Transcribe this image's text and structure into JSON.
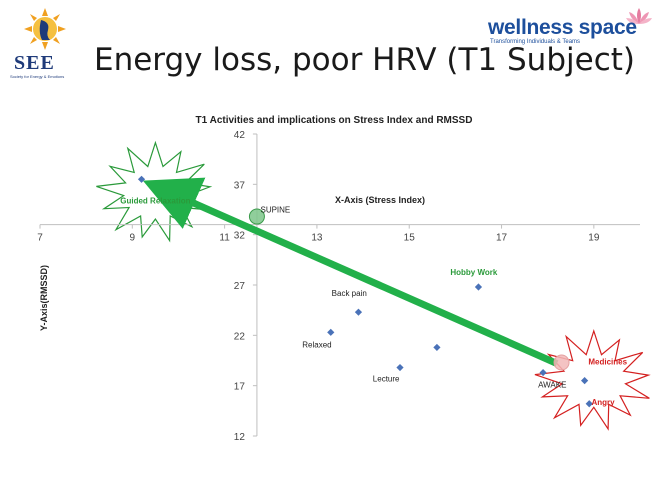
{
  "header": {
    "title": "Energy loss, poor HRV (T1 Subject)",
    "left_logo": {
      "text": "SEE",
      "subtitle": "Society for Energy & Emotions"
    },
    "right_logo": {
      "text": "wellness space",
      "tagline": "Transforming Individuals & Teams"
    }
  },
  "chart_data": {
    "type": "scatter",
    "title": "T1 Activities and implications on Stress Index and RMSSD",
    "xlabel": "X-Axis (Stress Index)",
    "ylabel": "Y-Axis(RMSSD)",
    "xlim": [
      7,
      20
    ],
    "ylim": [
      12,
      42
    ],
    "x_axis_crosses_y": 33,
    "y_axis_crosses_x": 11.7,
    "x_ticks": [
      7,
      9,
      11,
      13,
      15,
      17,
      19
    ],
    "y_ticks": [
      12,
      17,
      22,
      27,
      32,
      37,
      42
    ],
    "grid": false,
    "point_color": "#4a72b8",
    "points": [
      {
        "x": 9.2,
        "y": 37.5
      },
      {
        "x": 13.3,
        "y": 22.3
      },
      {
        "x": 13.9,
        "y": 24.3
      },
      {
        "x": 14.8,
        "y": 18.8
      },
      {
        "x": 15.6,
        "y": 20.8
      },
      {
        "x": 16.5,
        "y": 26.8
      },
      {
        "x": 17.9,
        "y": 18.3
      },
      {
        "x": 18.8,
        "y": 17.5
      },
      {
        "x": 18.9,
        "y": 15.2
      }
    ],
    "annotations": [
      {
        "text": "Guided Relaxation",
        "x": 9.5,
        "y": 35.1,
        "color": "#2a9a3a",
        "bold": true
      },
      {
        "text": "SUPINE",
        "x": 12.1,
        "y": 34.2,
        "color": "#222222",
        "bold": false
      },
      {
        "text": "Hobby Work",
        "x": 16.4,
        "y": 28.0,
        "color": "#2a9a3a",
        "bold": true
      },
      {
        "text": "Back pain",
        "x": 13.7,
        "y": 25.9,
        "color": "#222222",
        "bold": false
      },
      {
        "text": "Relaxed",
        "x": 13.0,
        "y": 20.8,
        "color": "#222222",
        "bold": false
      },
      {
        "text": "Lecture",
        "x": 14.5,
        "y": 17.4,
        "color": "#222222",
        "bold": false
      },
      {
        "text": "AWAKE",
        "x": 18.1,
        "y": 16.8,
        "color": "#222222",
        "bold": false
      },
      {
        "text": "Medicines",
        "x": 19.3,
        "y": 19.1,
        "color": "#d42020",
        "bold": true
      },
      {
        "text": "Angry",
        "x": 19.2,
        "y": 15.1,
        "color": "#d42020",
        "bold": true
      }
    ],
    "arrow": {
      "from": [
        18.2,
        19.2
      ],
      "to": [
        10.2,
        35.4
      ],
      "color": "#22b04a"
    },
    "markers": [
      {
        "x": 11.7,
        "y": 33.8,
        "color": "#7cc58a"
      },
      {
        "x": 18.3,
        "y": 19.3,
        "color": "#f2b8b8"
      }
    ],
    "bursts": [
      {
        "cx": 9.5,
        "cy": 36.2,
        "color": "#2a9a3a"
      },
      {
        "cx": 19.0,
        "cy": 17.5,
        "color": "#d42020"
      }
    ]
  }
}
